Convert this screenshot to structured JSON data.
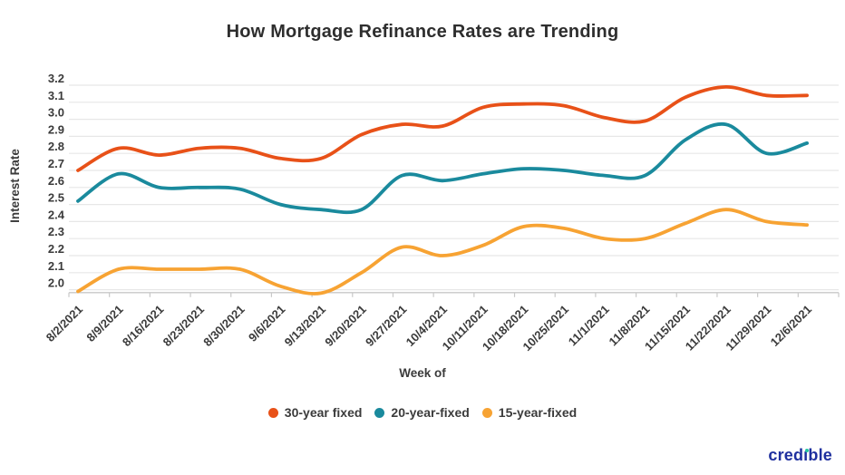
{
  "chart_data": {
    "type": "line",
    "title": "How Mortgage Refinance Rates are Trending",
    "xlabel": "Week of",
    "ylabel": "Interest Rate",
    "ylim": [
      2.0,
      3.2
    ],
    "ytick_step": 0.1,
    "grid": true,
    "legend_position": "bottom",
    "categories": [
      "8/2/2021",
      "8/9/2021",
      "8/16/2021",
      "8/23/2021",
      "8/30/2021",
      "9/6/2021",
      "9/13/2021",
      "9/20/2021",
      "9/27/2021",
      "10/4/2021",
      "10/11/2021",
      "10/18/2021",
      "10/25/2021",
      "11/1/2021",
      "11/8/2021",
      "11/15/2021",
      "11/22/2021",
      "11/29/2021",
      "12/6/2021"
    ],
    "series": [
      {
        "name": "30-year fixed",
        "color": "#e85118",
        "values": [
          2.7,
          2.83,
          2.79,
          2.83,
          2.83,
          2.77,
          2.77,
          2.91,
          2.97,
          2.96,
          3.07,
          3.09,
          3.08,
          3.01,
          2.99,
          3.13,
          3.19,
          3.14,
          3.14
        ]
      },
      {
        "name": "20-year-fixed",
        "color": "#1a8a9d",
        "values": [
          2.52,
          2.68,
          2.6,
          2.6,
          2.59,
          2.5,
          2.47,
          2.47,
          2.67,
          2.64,
          2.68,
          2.71,
          2.7,
          2.67,
          2.67,
          2.88,
          2.97,
          2.8,
          2.86
        ]
      },
      {
        "name": "15-year-fixed",
        "color": "#f7a333",
        "values": [
          1.99,
          2.12,
          2.12,
          2.12,
          2.12,
          2.02,
          1.98,
          2.1,
          2.25,
          2.2,
          2.26,
          2.37,
          2.36,
          2.3,
          2.3,
          2.39,
          2.47,
          2.4,
          2.38
        ]
      }
    ],
    "colors": {
      "gridline": "#e7e7e7",
      "axis_line": "#c8c8c8",
      "tick_label": "#3b3b3b",
      "title": "#2e2e2e"
    }
  },
  "branding": {
    "logo_text": "credıble",
    "logo_color": "#1e2f9e",
    "logo_dot_color": "#25c6a2"
  }
}
